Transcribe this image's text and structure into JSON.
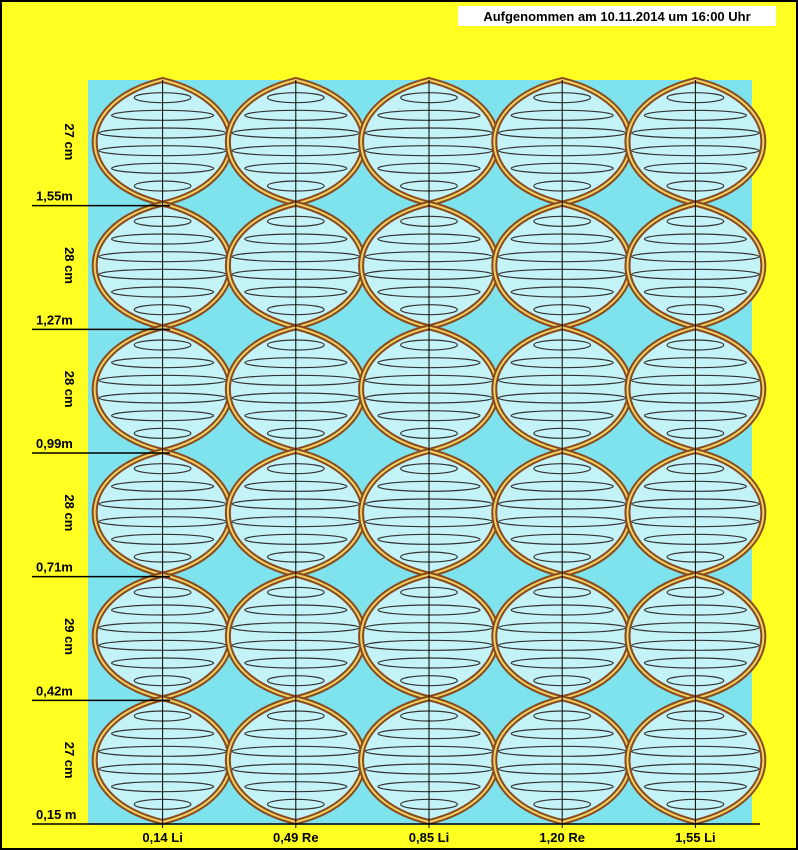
{
  "caption": "Aufgenommen am 10.11.2014 um 16:00 Uhr",
  "segments": [
    "27 cm",
    "28 cm",
    "28 cm",
    "28 cm",
    "29 cm",
    "27 cm"
  ],
  "heights": [
    "1,55m",
    "1,27m",
    "0,99m",
    "0,71m",
    "0,42m",
    "0,15 m"
  ],
  "positions": [
    "0,14 Li",
    "0,49 Re",
    "0,85 Li",
    "1,20 Re",
    "1,55 Li"
  ]
}
